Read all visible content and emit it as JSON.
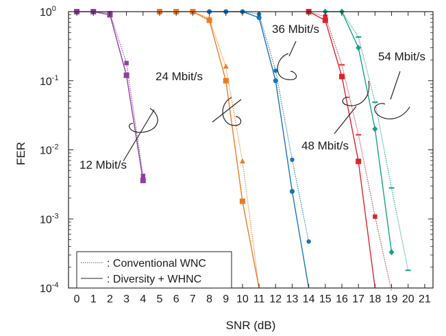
{
  "chart_data": {
    "type": "line",
    "xlabel": "SNR (dB)",
    "ylabel": "FER",
    "xlim": [
      -0.5,
      21.5
    ],
    "ylim": [
      0.0001,
      1
    ],
    "y_scale": "log",
    "grid": false,
    "x_ticks": [
      "0",
      "1",
      "2",
      "3",
      "4",
      "5",
      "6",
      "7",
      "8",
      "9",
      "10",
      "11",
      "12",
      "13",
      "14",
      "15",
      "16",
      "17",
      "18",
      "19",
      "20",
      "21"
    ],
    "y_ticks": [
      {
        "value": 1,
        "base": "10",
        "exp": "0"
      },
      {
        "value": 0.1,
        "base": "10",
        "exp": "-1"
      },
      {
        "value": 0.01,
        "base": "10",
        "exp": "-2"
      },
      {
        "value": 0.001,
        "base": "10",
        "exp": "-3"
      },
      {
        "value": 0.0001,
        "base": "10",
        "exp": "-4"
      }
    ],
    "legend": {
      "placement": "bottom-left",
      "entries": [
        {
          "label": ": Conventional WNC",
          "style": "dotted"
        },
        {
          "label": ": Diversity + WHNC",
          "style": "solid"
        }
      ]
    },
    "groups": [
      {
        "label": "12 Mbit/s",
        "color": "#8e3fa0",
        "marker": "square",
        "solid": [
          [
            0,
            1
          ],
          [
            1,
            1
          ],
          [
            2,
            0.9
          ],
          [
            3,
            0.12
          ],
          [
            4,
            0.0036
          ]
        ],
        "dotted": [
          [
            0,
            1
          ],
          [
            1,
            1
          ],
          [
            2,
            0.95
          ],
          [
            3,
            0.18
          ],
          [
            4,
            0.0042
          ]
        ]
      },
      {
        "label": "24 Mbit/s",
        "color": "#f07a22",
        "marker": "square",
        "solid": [
          [
            5,
            1
          ],
          [
            6,
            1
          ],
          [
            7,
            1
          ],
          [
            8,
            0.75
          ],
          [
            9,
            0.1
          ],
          [
            10,
            0.0018
          ],
          [
            11,
            0.0001
          ]
        ],
        "dotted": [
          [
            5,
            1
          ],
          [
            6,
            1
          ],
          [
            7,
            1
          ],
          [
            8,
            0.8
          ],
          [
            9,
            0.16
          ],
          [
            10,
            0.0068
          ],
          [
            11,
            0.0001
          ]
        ]
      },
      {
        "label": "36 Mbit/s",
        "color": "#1a73b8",
        "marker": "circle",
        "solid": [
          [
            8,
            1
          ],
          [
            9,
            1
          ],
          [
            10,
            1
          ],
          [
            11,
            0.82
          ],
          [
            12,
            0.1
          ],
          [
            13,
            0.0025
          ],
          [
            14,
            0.0001
          ]
        ],
        "dotted": [
          [
            8,
            1
          ],
          [
            9,
            1
          ],
          [
            10,
            1
          ],
          [
            11,
            0.92
          ],
          [
            12,
            0.14
          ],
          [
            13,
            0.0072
          ],
          [
            14,
            0.00047
          ]
        ]
      },
      {
        "label": "48 Mbit/s",
        "color": "#d9242e",
        "marker": "square",
        "solid": [
          [
            14,
            1
          ],
          [
            15,
            0.75
          ],
          [
            16,
            0.115
          ],
          [
            17,
            0.0068
          ],
          [
            18,
            0.0001
          ]
        ],
        "dotted": [
          [
            14,
            1
          ],
          [
            15,
            0.85
          ],
          [
            16,
            0.17
          ],
          [
            17,
            0.0165
          ],
          [
            18,
            0.00108
          ],
          [
            19,
            9e-05
          ]
        ]
      },
      {
        "label": "54 Mbit/s",
        "color": "#17a08a",
        "marker": "diamond",
        "solid": [
          [
            15,
            1
          ],
          [
            16,
            1
          ],
          [
            17,
            0.3
          ],
          [
            18,
            0.02
          ],
          [
            19,
            0.00033
          ]
        ],
        "dotted": [
          [
            15,
            1
          ],
          [
            16,
            1
          ],
          [
            17,
            0.43
          ],
          [
            18,
            0.049
          ],
          [
            19,
            0.0028
          ],
          [
            20,
            0.00018
          ]
        ]
      }
    ]
  }
}
